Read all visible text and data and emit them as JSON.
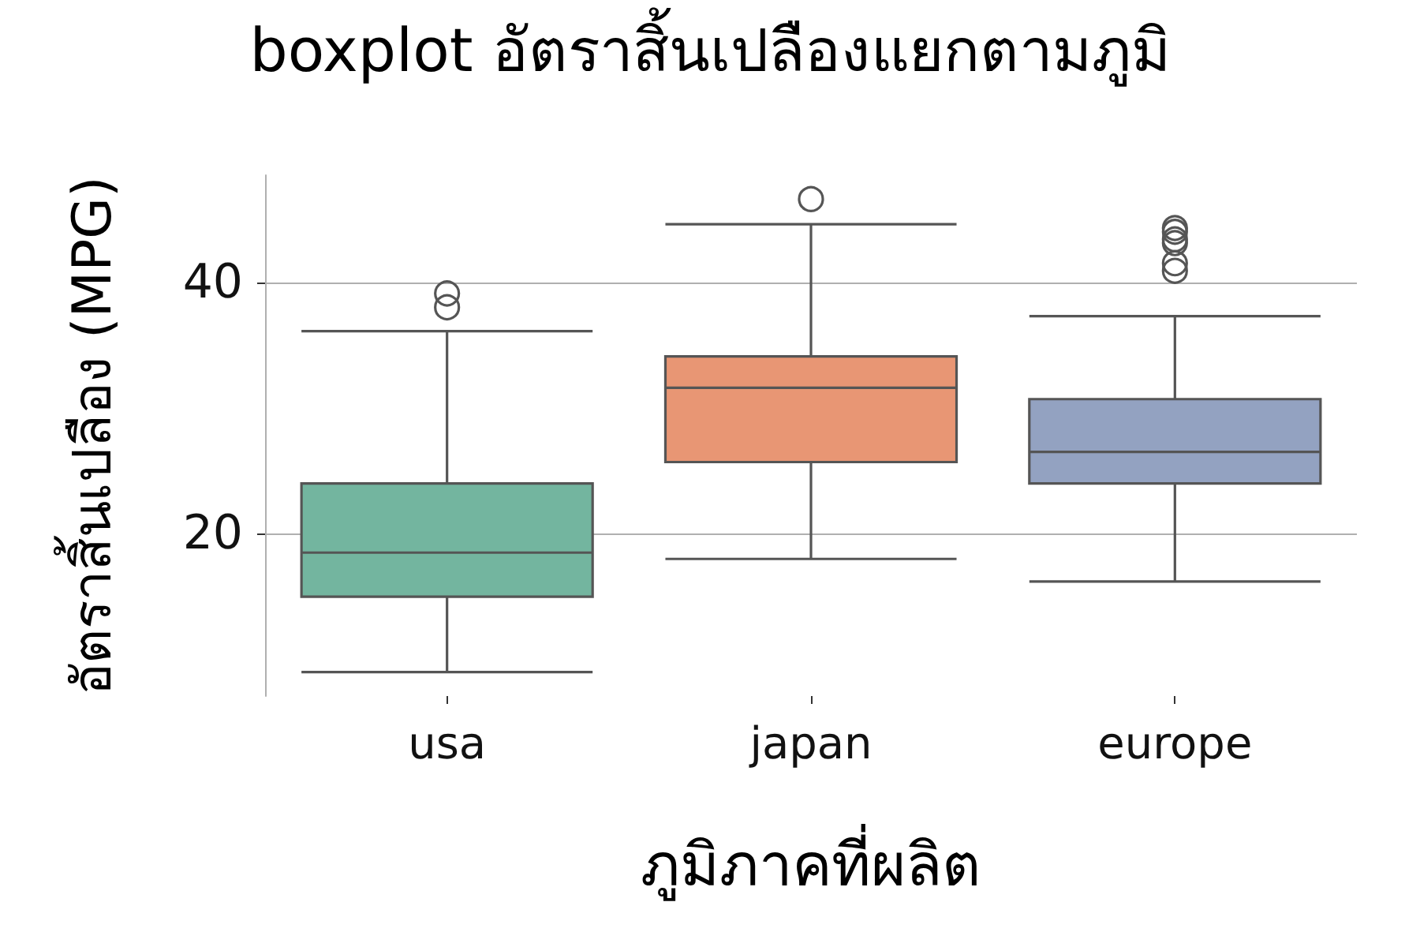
{
  "chart_data": {
    "type": "box",
    "title": "boxplot อัตราสิ้นเปลืองแยกตามภูมิ",
    "xlabel": "ภูมิภาคที่ผลิต",
    "ylabel": "อัตราสิ้นเปลือง (MPG)",
    "categories": [
      "usa",
      "japan",
      "europe"
    ],
    "boxes": [
      {
        "low": 9.0,
        "q1": 15.0,
        "median": 18.5,
        "q3": 24.0,
        "high": 36.1,
        "outliers": [
          39.1,
          38.0
        ]
      },
      {
        "low": 18.0,
        "q1": 25.7,
        "median": 31.6,
        "q3": 34.1,
        "high": 44.6,
        "outliers": [
          46.6
        ]
      },
      {
        "low": 16.2,
        "q1": 24.0,
        "median": 26.5,
        "q3": 30.7,
        "high": 37.3,
        "outliers": [
          44.3,
          44.0,
          43.4,
          43.1,
          41.5,
          40.9
        ]
      }
    ],
    "colors": [
      "#73b59f",
      "#e89674",
      "#93a2c1"
    ],
    "ylim": [
      7.1,
      48.5
    ],
    "yticks": [
      20,
      40
    ],
    "grid": "y"
  }
}
